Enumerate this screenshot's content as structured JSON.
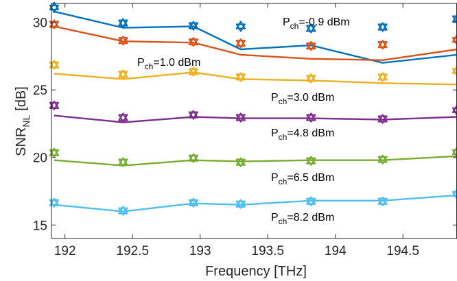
{
  "chart_data": {
    "type": "line",
    "title": "",
    "xlabel": "Frequency [THz]",
    "ylabel": {
      "main": "SNR",
      "sub": "NL",
      "unit": "[dB]"
    },
    "xlim": [
      191.9,
      194.9
    ],
    "ylim": [
      14.0,
      31.4
    ],
    "xticks": [
      192,
      192.5,
      193,
      193.5,
      194,
      194.5
    ],
    "xtick_labels": [
      "192",
      "192.5",
      "193",
      "193.5",
      "194",
      "194.5"
    ],
    "yticks": [
      15,
      20,
      25,
      30
    ],
    "ytick_labels": [
      "15",
      "20",
      "25",
      "30"
    ],
    "grid": false,
    "legend": "none",
    "x": [
      191.92,
      192.43,
      192.95,
      193.3,
      193.82,
      194.35,
      194.9
    ],
    "series": [
      {
        "annotation": {
          "prefix": "P",
          "sub": "ch",
          "value": "=-0.9 dBm"
        },
        "color": "#0072BD",
        "line": [
          30.8,
          29.6,
          29.7,
          28.0,
          28.3,
          27.0,
          27.6
        ],
        "markers_down": [
          31.0,
          29.9,
          29.7,
          29.6,
          29.5,
          29.6,
          30.2
        ],
        "markers_up": [
          31.2,
          30.0,
          29.8,
          29.8,
          29.6,
          29.7,
          30.3
        ]
      },
      {
        "annotation": {
          "prefix": "P",
          "sub": "ch",
          "value": "=1.0 dBm"
        },
        "color": "#D95319",
        "line": [
          29.7,
          28.6,
          28.5,
          27.6,
          27.3,
          27.2,
          28.0
        ],
        "markers_down": [
          29.8,
          28.6,
          28.5,
          28.4,
          28.2,
          28.3,
          28.6
        ],
        "markers_up": [
          29.9,
          28.7,
          28.6,
          28.5,
          28.3,
          28.4,
          28.8
        ]
      },
      {
        "annotation": {
          "prefix": "P",
          "sub": "ch",
          "value": "=3.0 dBm"
        },
        "color": "#EDB120",
        "line": [
          26.2,
          25.8,
          26.3,
          25.8,
          25.7,
          25.5,
          25.4
        ],
        "markers_down": [
          26.8,
          26.1,
          26.3,
          25.9,
          25.8,
          25.9,
          26.3
        ],
        "markers_up": [
          26.9,
          26.2,
          26.4,
          26.0,
          25.9,
          26.0,
          26.5
        ]
      },
      {
        "annotation": {
          "prefix": "P",
          "sub": "ch",
          "value": "=4.8 dBm"
        },
        "color": "#7E2F8E",
        "line": [
          23.1,
          22.6,
          23.0,
          22.9,
          22.9,
          22.8,
          23.0
        ],
        "markers_down": [
          23.8,
          22.9,
          23.1,
          22.9,
          22.9,
          22.8,
          23.4
        ],
        "markers_up": [
          23.9,
          23.0,
          23.2,
          23.0,
          23.0,
          22.9,
          23.6
        ]
      },
      {
        "annotation": {
          "prefix": "P",
          "sub": "ch",
          "value": "=6.5 dBm"
        },
        "color": "#77AC30",
        "line": [
          19.8,
          19.4,
          19.8,
          19.7,
          19.8,
          19.8,
          20.1
        ],
        "markers_down": [
          20.3,
          19.6,
          19.9,
          19.6,
          19.7,
          19.8,
          20.3
        ],
        "markers_up": [
          20.4,
          19.7,
          20.0,
          19.7,
          19.8,
          19.9,
          20.5
        ]
      },
      {
        "annotation": {
          "prefix": "P",
          "sub": "ch",
          "value": "=8.2 dBm"
        },
        "color": "#4DBEEE",
        "line": [
          16.5,
          16.0,
          16.6,
          16.5,
          16.8,
          16.8,
          17.2
        ],
        "markers_down": [
          16.6,
          16.0,
          16.6,
          16.5,
          16.7,
          16.7,
          17.2
        ],
        "markers_up": [
          16.7,
          16.1,
          16.7,
          16.6,
          16.8,
          16.8,
          17.4
        ]
      }
    ]
  }
}
